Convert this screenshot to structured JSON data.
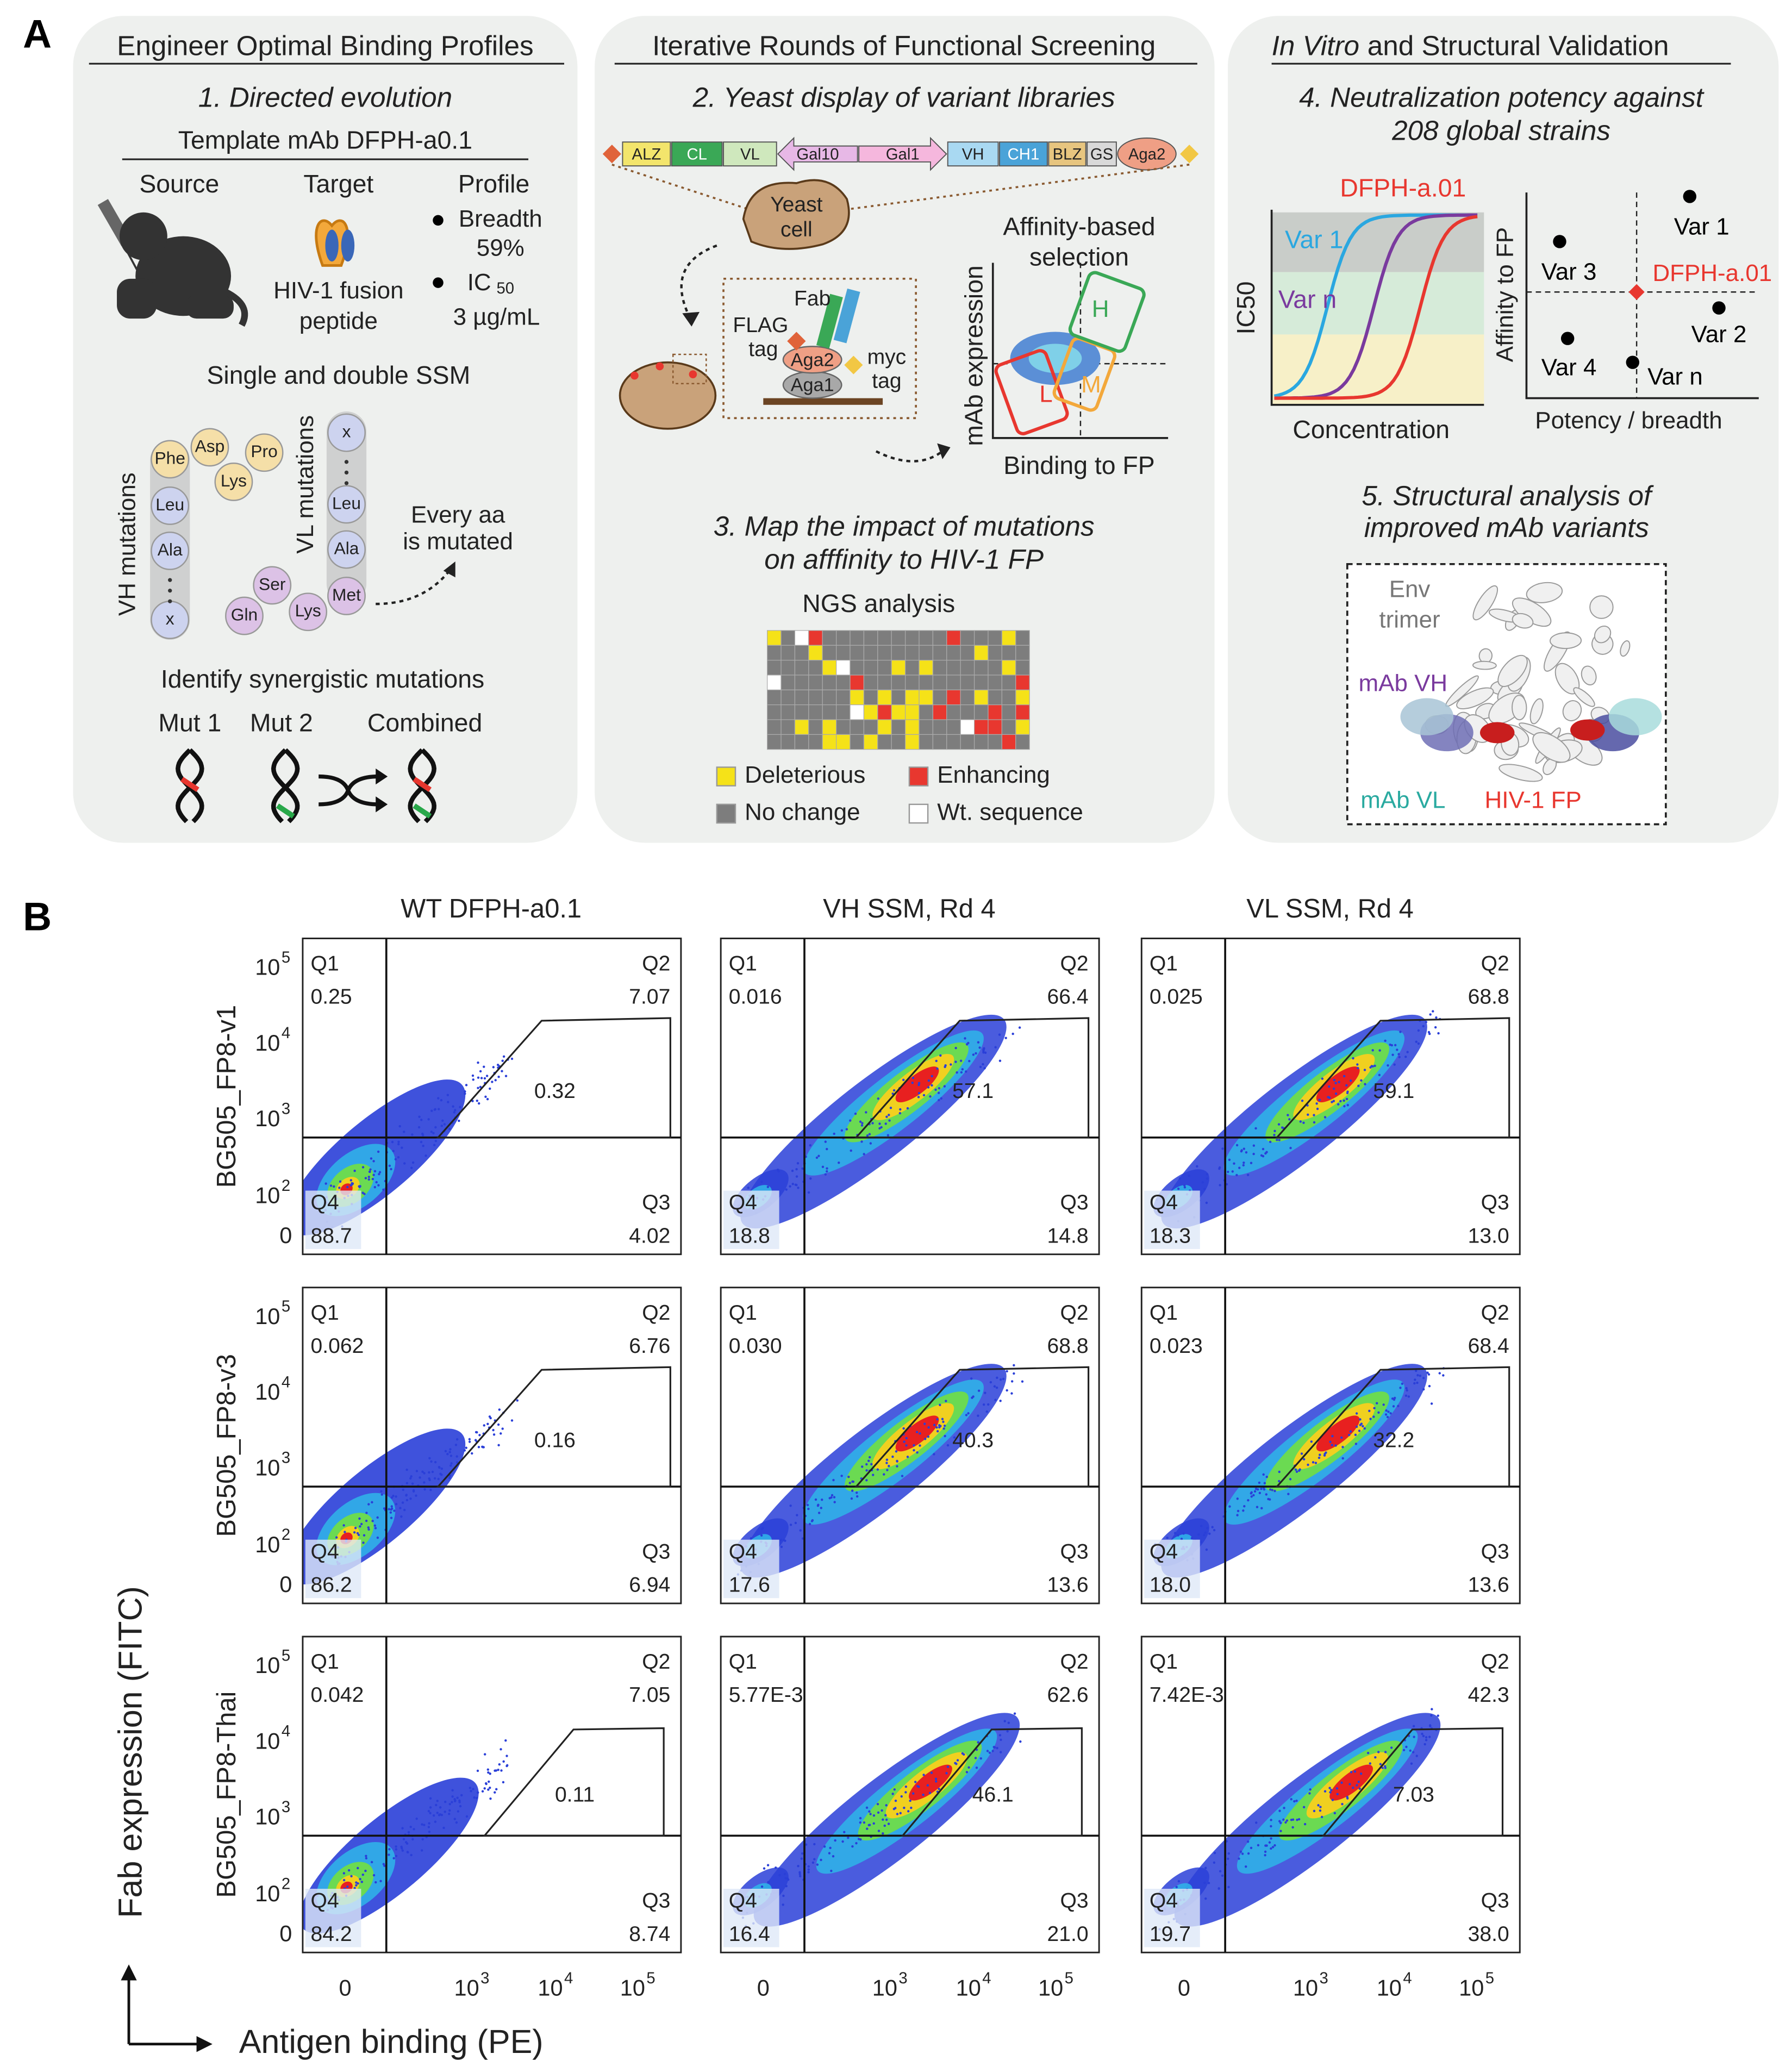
{
  "panel_a": {
    "label": "A",
    "engineer": {
      "title": "Engineer Optimal Binding Profiles",
      "step": "1. Directed evolution",
      "template": "Template mAb DFPH-a0.1",
      "source": "Source",
      "target": "Target",
      "profile": "Profile",
      "breadth": "Breadth",
      "breadth_value": "59%",
      "ic": "IC",
      "ic_sub": "50",
      "ic_value": "3 µg/mL",
      "target_name": [
        "HIV-1 fusion",
        "peptide"
      ],
      "ssm": "Single and double SSM",
      "vh_label": "VH  mutations",
      "vl_label": "VL mutations",
      "vh_residues": [
        "Phe",
        "Asp",
        "Pro",
        "Lys",
        "Leu",
        "Ala",
        "x"
      ],
      "vl_residues": [
        "x",
        "Leu",
        "Ala",
        "Met",
        "Ser",
        "Lys",
        "Gln"
      ],
      "every_aa": [
        "Every aa",
        "is mutated"
      ],
      "synergy": "Identify synergistic mutations",
      "mut1": "Mut 1",
      "mut2": "Mut 2",
      "combined": "Combined"
    },
    "screening": {
      "title": "Iterative Rounds of Functional Screening",
      "step2": "2. Yeast display of variant libraries",
      "construct": [
        "ALZ",
        "CL",
        "VL",
        "Gal10",
        "Gal1",
        "VH",
        "CH1",
        "BLZ",
        "GS",
        "Aga2"
      ],
      "yeast": [
        "Yeast",
        "cell"
      ],
      "fab": "Fab",
      "flag": [
        "FLAG",
        "tag"
      ],
      "aga2": "Aga2",
      "myc": [
        "myc",
        "tag"
      ],
      "aga1": "Aga1",
      "selection": [
        "Affinity-based",
        "selection"
      ],
      "y_axis": "mAb expression",
      "x_axis": "Binding to FP",
      "gates": [
        "H",
        "L",
        "M"
      ],
      "step3": [
        "3. Map the impact of mutations",
        "on afffinity to HIV-1 FP"
      ],
      "ngs": "NGS analysis",
      "legend": [
        "Deleterious",
        "Enhancing",
        "No change",
        "Wt. sequence"
      ]
    },
    "validation": {
      "title_italic": "In Vitro",
      "title_rest": "and Structural Validation",
      "step4": [
        "4. Neutralization potency against",
        "208 global strains"
      ],
      "curve_label": "DFPH-a.01",
      "curves": [
        "Var 1",
        "Var n"
      ],
      "y_axis": "IC50",
      "x_axis": "Concentration",
      "points": [
        "Var 1",
        "Var 3",
        "DFPH-a.01",
        "Var 2",
        "Var 4",
        "Var n"
      ],
      "scatter_y": "Affinity to FP",
      "scatter_x": "Potency / breadth",
      "step5": [
        "5. Structural analysis of",
        "improved mAb variants"
      ],
      "structure": [
        "Env",
        "trimer"
      ],
      "vh": "mAb VH",
      "vl": "mAb VL",
      "fp": "HIV-1 FP"
    }
  },
  "panel_b": {
    "label": "B",
    "columns": [
      "WT DFPH-a0.1",
      "VH SSM, Rd 4",
      "VL SSM, Rd 4"
    ],
    "rows": [
      "BG505_FP8-v1",
      "BG505_FP8-v3",
      "BG505_FP8-Thai"
    ],
    "y_axis": "Fab expression (FITC)",
    "x_axis": "Antigen binding (PE)",
    "quadrants": [
      "Q1",
      "Q2",
      "Q3",
      "Q4"
    ],
    "y_ticks": [
      {
        "text": "10",
        "sup": "5"
      },
      {
        "text": "10",
        "sup": "4"
      },
      {
        "text": "10",
        "sup": "3"
      },
      {
        "text": "10",
        "sup": "2"
      },
      {
        "text": "0"
      }
    ],
    "x_ticks": [
      {
        "text": "0"
      },
      {
        "text": "10",
        "sup": "3"
      },
      {
        "text": "10",
        "sup": "4"
      },
      {
        "text": "10",
        "sup": "5"
      }
    ],
    "plots": [
      [
        {
          "q1": "0.25",
          "q2": "7.07",
          "q3": "4.02",
          "q4": "88.7",
          "gate": "0.32"
        },
        {
          "q1": "0.016",
          "q2": "66.4",
          "q3": "14.8",
          "q4": "18.8",
          "gate": "57.1"
        },
        {
          "q1": "0.025",
          "q2": "68.8",
          "q3": "13.0",
          "q4": "18.3",
          "gate": "59.1"
        }
      ],
      [
        {
          "q1": "0.062",
          "q2": "6.76",
          "q3": "6.94",
          "q4": "86.2",
          "gate": "0.16"
        },
        {
          "q1": "0.030",
          "q2": "68.8",
          "q3": "13.6",
          "q4": "17.6",
          "gate": "40.3"
        },
        {
          "q1": "0.023",
          "q2": "68.4",
          "q3": "13.6",
          "q4": "18.0",
          "gate": "32.2"
        }
      ],
      [
        {
          "q1": "0.042",
          "q2": "7.05",
          "q3": "8.74",
          "q4": "84.2",
          "gate": "0.11"
        },
        {
          "q1": "5.77E-3",
          "q2": "62.6",
          "q3": "21.0",
          "q4": "16.4",
          "gate": "46.1"
        },
        {
          "q1": "7.42E-3",
          "q2": "42.3",
          "q3": "38.0",
          "q4": "19.7",
          "gate": "7.03"
        }
      ]
    ]
  }
}
